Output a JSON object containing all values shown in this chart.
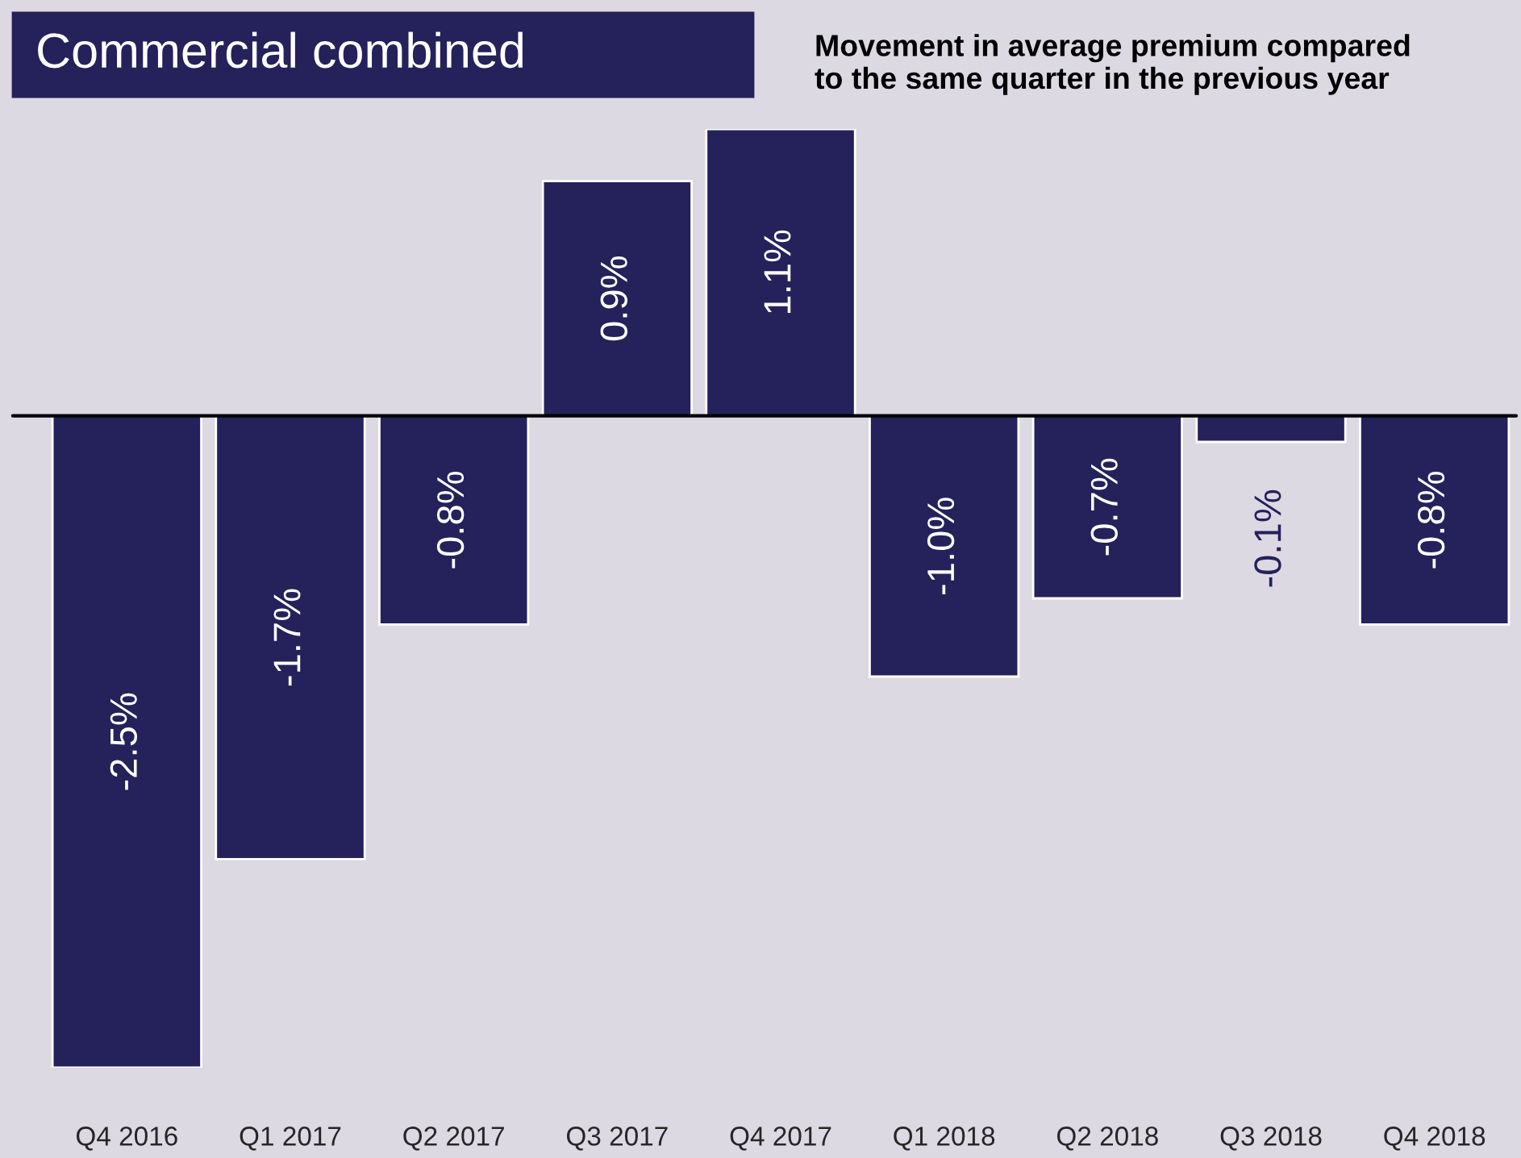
{
  "chart_data": {
    "type": "bar",
    "title": "Commercial combined",
    "subtitle": "Movement in average premium compared\nto the same quarter in the previous year",
    "categories": [
      "Q4 2016",
      "Q1 2017",
      "Q2 2017",
      "Q3 2017",
      "Q4 2017",
      "Q1 2018",
      "Q2 2018",
      "Q3 2018",
      "Q4 2018"
    ],
    "values": [
      -2.5,
      -1.7,
      -0.8,
      0.9,
      1.1,
      -1.0,
      -0.7,
      -0.1,
      -0.8
    ],
    "value_labels": [
      "-2.5%",
      "-1.7%",
      "-0.8%",
      "0.9%",
      "1.1%",
      "-1.0%",
      "-0.7%",
      "-0.1%",
      "-0.8%"
    ],
    "color": "#25215b",
    "grid": false,
    "legend": false
  }
}
